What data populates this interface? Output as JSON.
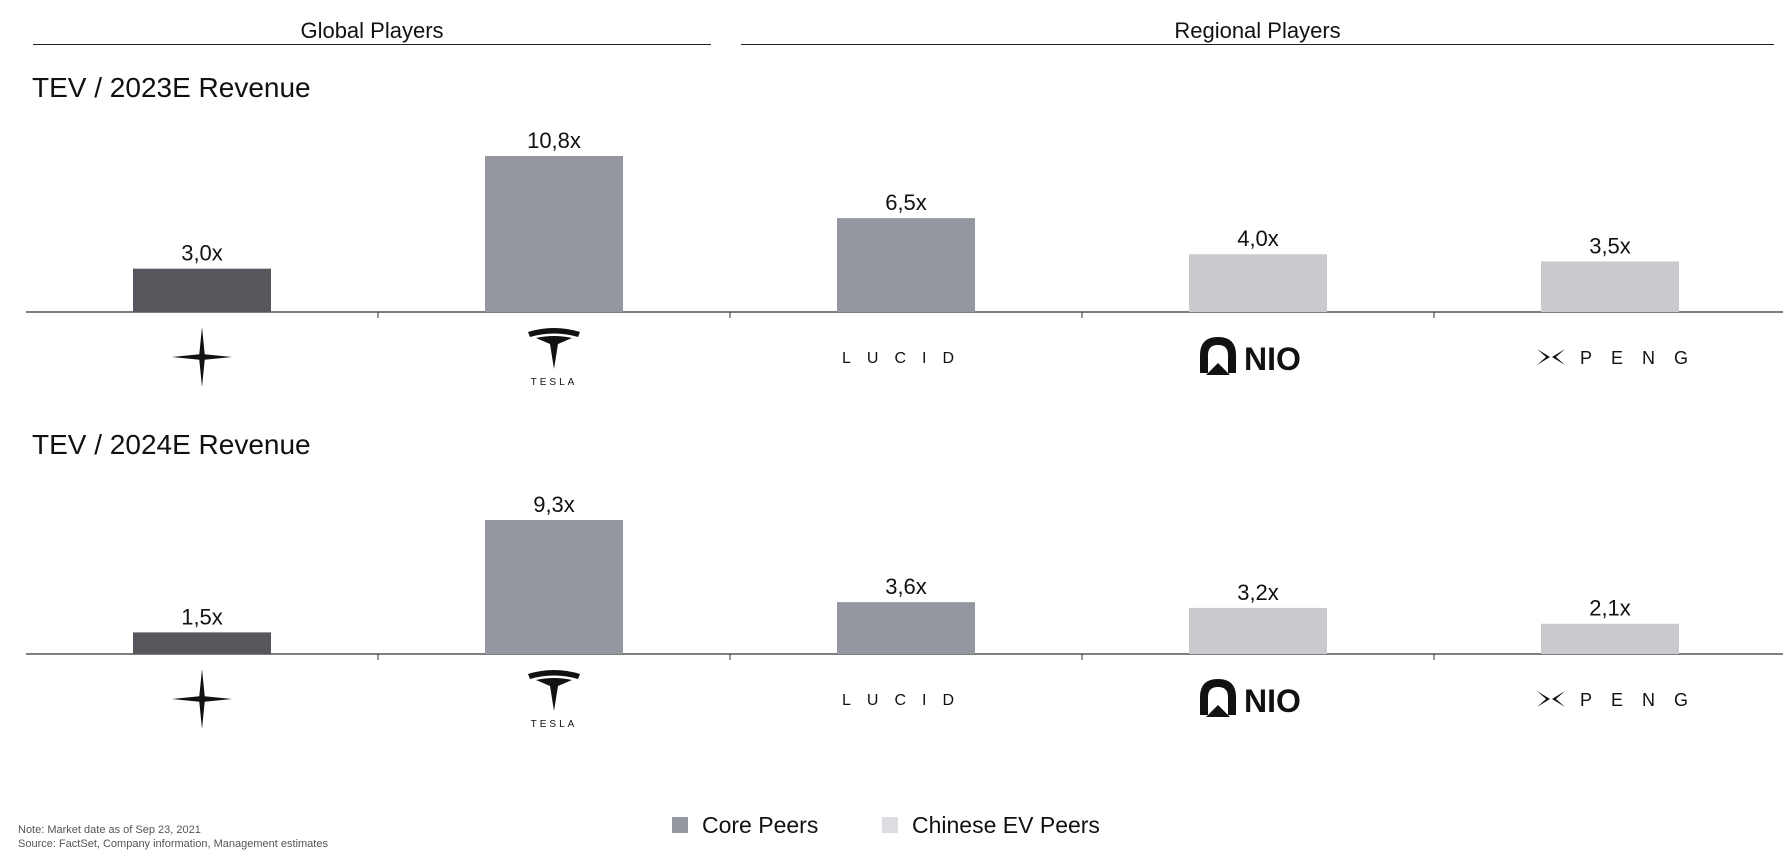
{
  "header": {
    "global": "Global Players",
    "regional": "Regional Players"
  },
  "companies": [
    "polestar",
    "tesla",
    "lucid",
    "nio",
    "xpeng"
  ],
  "logo_text": {
    "tesla": "TESLA",
    "lucid": "LUCID",
    "nio": "NIO",
    "xpeng": "PENG"
  },
  "colors": {
    "polestar": "#55575d",
    "core": "#9497a0",
    "chinese": "#c8cacd"
  },
  "chart_data": [
    {
      "type": "bar",
      "title": "TEV / 2023E Revenue",
      "categories": [
        "polestar",
        "tesla",
        "lucid",
        "nio",
        "xpeng"
      ],
      "values": [
        3.0,
        10.8,
        6.5,
        4.0,
        3.5
      ],
      "labels": [
        "3,0x",
        "10,8x",
        "6,5x",
        "4,0x",
        "3,5x"
      ],
      "groups": [
        "polestar",
        "core",
        "core",
        "chinese",
        "chinese"
      ],
      "ylim": [
        0,
        10.8
      ]
    },
    {
      "type": "bar",
      "title": "TEV / 2024E Revenue",
      "categories": [
        "polestar",
        "tesla",
        "lucid",
        "nio",
        "xpeng"
      ],
      "values": [
        1.5,
        9.3,
        3.6,
        3.2,
        2.1
      ],
      "labels": [
        "1,5x",
        "9,3x",
        "3,6x",
        "3,2x",
        "2,1x"
      ],
      "groups": [
        "polestar",
        "core",
        "core",
        "chinese",
        "chinese"
      ],
      "ylim": [
        0,
        9.3
      ]
    }
  ],
  "legend": [
    {
      "label": "Core Peers",
      "color": "#9497a0"
    },
    {
      "label": "Chinese EV Peers",
      "color": "#dcdde0"
    }
  ],
  "notes": {
    "line1": "Note: Market date as of Sep 23, 2021",
    "line2": "Source: FactSet, Company information, Management estimates"
  }
}
